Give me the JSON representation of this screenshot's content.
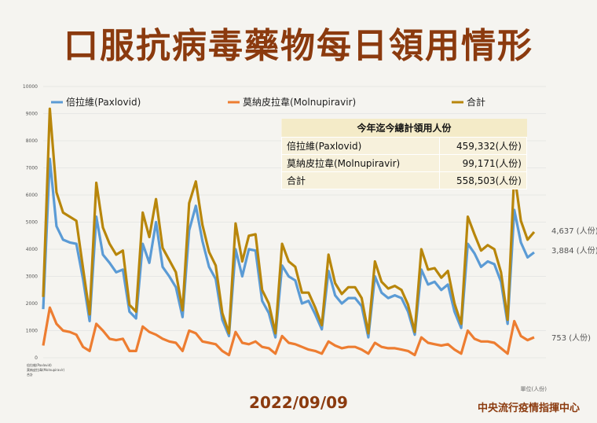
{
  "title": "口服抗病毒藥物每日領用情形",
  "date": "2022/09/09",
  "source": "中央流行疫情指揮中心",
  "unit_note": "單位(人份)",
  "totals_table": {
    "header": "今年迄今總計領用人份",
    "rows": [
      {
        "name": "倍拉維(Paxlovid)",
        "value": "459,332(人份)"
      },
      {
        "name": "莫納皮拉韋(Molnupiravir)",
        "value": "99,171(人份)"
      },
      {
        "name": "合計",
        "value": "558,503(人份)"
      }
    ]
  },
  "end_labels": {
    "total": "4,637 (人份)",
    "paxlovid": "3,884 (人份)",
    "molnupiravir": "753 (人份)"
  },
  "table_row_labels": [
    "倍拉維(Paxlovid)",
    "莫納皮拉韋(Molnupiravir)",
    "合計"
  ],
  "colors": {
    "paxlovid": "#5b9bd5",
    "molnupiravir": "#ed7d31",
    "total": "#b8860b",
    "title": "#8b3a0e"
  },
  "chart_data": {
    "type": "line",
    "ylim": [
      0,
      10000
    ],
    "yticks": [
      0,
      1000,
      2000,
      3000,
      4000,
      5000,
      6000,
      7000,
      8000,
      9000,
      10000
    ],
    "grid": true,
    "legend": "top",
    "series": [
      {
        "name": "倍拉維(Paxlovid)",
        "values": [
          1790,
          7330,
          4850,
          4350,
          4250,
          4200,
          2900,
          1350,
          5200,
          3800,
          3500,
          3150,
          3250,
          1700,
          1450,
          4200,
          3500,
          5000,
          3350,
          3000,
          2600,
          1500,
          4700,
          5600,
          4300,
          3350,
          2900,
          1400,
          800,
          4000,
          3000,
          4000,
          3950,
          2100,
          1650,
          750,
          3400,
          3000,
          2850,
          2000,
          2100,
          1600,
          1050,
          3200,
          2300,
          2000,
          2200,
          2200,
          1900,
          750,
          3000,
          2400,
          2200,
          2300,
          2200,
          1700,
          850,
          3250,
          2700,
          2800,
          2500,
          2700,
          1700,
          1100,
          4200,
          3850,
          3350,
          3550,
          3450,
          2800,
          1250,
          5450,
          4250,
          3700,
          3884
        ]
      },
      {
        "name": "莫納皮拉韋(Molnupiravir)",
        "values": [
          450,
          1850,
          1250,
          1000,
          950,
          850,
          400,
          250,
          1250,
          1000,
          700,
          650,
          700,
          250,
          250,
          1150,
          950,
          850,
          700,
          600,
          550,
          250,
          1000,
          900,
          600,
          550,
          500,
          250,
          100,
          950,
          550,
          500,
          600,
          400,
          350,
          150,
          800,
          550,
          500,
          400,
          300,
          250,
          150,
          600,
          450,
          350,
          400,
          400,
          300,
          150,
          550,
          400,
          350,
          350,
          300,
          250,
          100,
          750,
          550,
          500,
          450,
          500,
          300,
          150,
          1000,
          700,
          600,
          600,
          550,
          350,
          150,
          1350,
          800,
          650,
          753
        ]
      },
      {
        "name": "合計",
        "values": [
          2240,
          9180,
          6100,
          5350,
          5200,
          5050,
          3300,
          1600,
          6450,
          4800,
          4200,
          3800,
          3950,
          1950,
          1700,
          5350,
          4450,
          5850,
          4050,
          3600,
          3150,
          1750,
          5700,
          6500,
          4900,
          3900,
          3400,
          1650,
          900,
          4950,
          3550,
          4500,
          4550,
          2500,
          2000,
          900,
          4200,
          3550,
          3350,
          2400,
          2400,
          1850,
          1200,
          3800,
          2750,
          2350,
          2600,
          2600,
          2200,
          900,
          3550,
          2800,
          2550,
          2650,
          2500,
          1950,
          950,
          4000,
          3250,
          3300,
          2950,
          3200,
          2000,
          1250,
          5200,
          4550,
          3950,
          4150,
          4000,
          3150,
          1400,
          6800,
          5050,
          4350,
          4637
        ]
      }
    ]
  }
}
